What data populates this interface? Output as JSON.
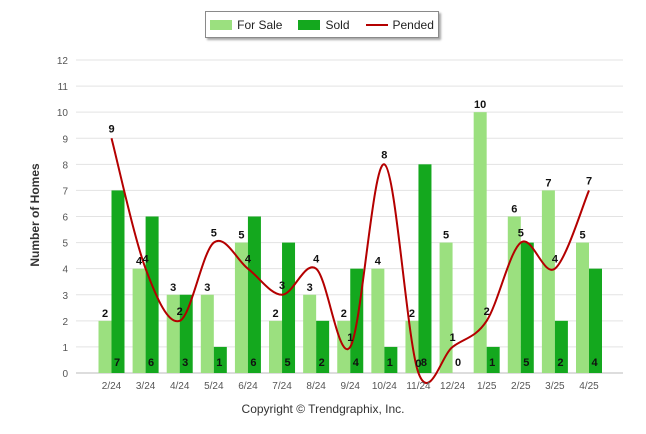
{
  "legend": {
    "for_sale": "For Sale",
    "sold": "Sold",
    "pended": "Pended"
  },
  "colors": {
    "for_sale": "#9be07f",
    "sold": "#14a81e",
    "pended": "#b40000"
  },
  "ylabel": "Number of Homes",
  "copyright": "Copyright © Trendgraphix, Inc.",
  "chart_data": {
    "type": "bar",
    "categories": [
      "2/24",
      "3/24",
      "4/24",
      "5/24",
      "6/24",
      "7/24",
      "8/24",
      "9/24",
      "10/24",
      "11/24",
      "12/24",
      "1/25",
      "2/25",
      "3/25",
      "4/25"
    ],
    "series": [
      {
        "name": "For Sale",
        "type": "bar",
        "values": [
          2,
          4,
          3,
          3,
          5,
          2,
          3,
          2,
          4,
          2,
          5,
          10,
          6,
          7,
          5
        ]
      },
      {
        "name": "Sold",
        "type": "bar",
        "values": [
          7,
          6,
          3,
          1,
          6,
          5,
          2,
          4,
          1,
          8,
          0,
          1,
          5,
          2,
          4
        ]
      },
      {
        "name": "Pended",
        "type": "line",
        "values": [
          9,
          4,
          2,
          5,
          4,
          3,
          4,
          1,
          8,
          0,
          1,
          2,
          5,
          4,
          7
        ]
      }
    ],
    "xlabel": "",
    "ylabel": "Number of Homes",
    "ylim": [
      0,
      12
    ],
    "yticks": [
      0,
      1,
      2,
      3,
      4,
      5,
      6,
      7,
      8,
      9,
      10,
      11,
      12
    ],
    "grid": true,
    "legend_position": "top-center"
  }
}
